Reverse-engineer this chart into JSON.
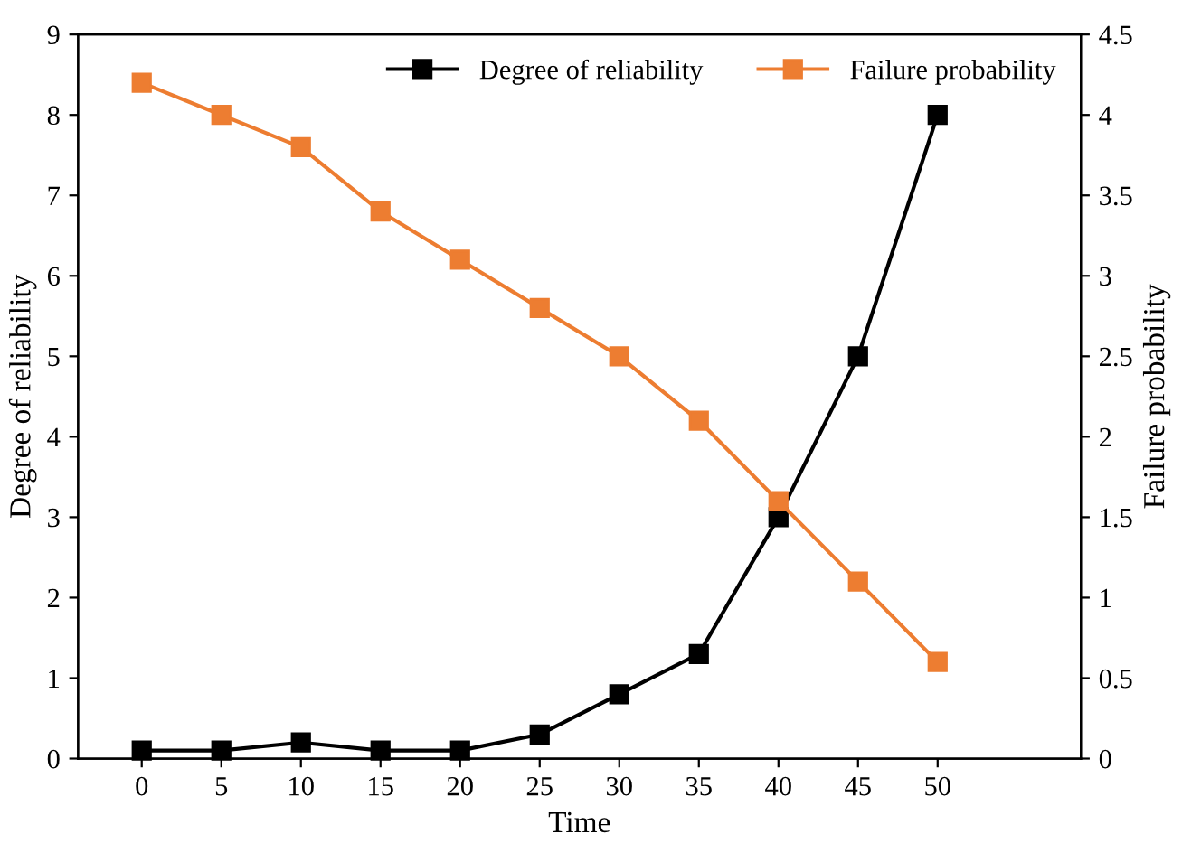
{
  "chart_data": {
    "type": "line",
    "xlabel": "Time",
    "ylabel": "Degree of reliability",
    "y2label": "Failure probability",
    "x": [
      0,
      5,
      10,
      15,
      20,
      25,
      30,
      35,
      40,
      45,
      50
    ],
    "series": [
      {
        "name": "Degree of reliability",
        "color": "#000000",
        "values": [
          0.1,
          0.1,
          0.2,
          0.1,
          0.1,
          0.3,
          0.8,
          1.3,
          3.0,
          5.0,
          8.0
        ]
      },
      {
        "name": "Failure probability",
        "color": "#ed7d31",
        "axis": "y2",
        "values": [
          4.2,
          4.0,
          3.8,
          3.4,
          3.1,
          2.8,
          2.5,
          2.1,
          1.6,
          1.1,
          0.6
        ]
      }
    ],
    "xlim": [
      -4,
      59
    ],
    "xticks": [
      0,
      5,
      10,
      15,
      20,
      25,
      30,
      35,
      40,
      45,
      50
    ],
    "ylim": [
      0,
      9
    ],
    "yticks": [
      0,
      1,
      2,
      3,
      4,
      5,
      6,
      7,
      8,
      9
    ],
    "y2lim": [
      0,
      4.5
    ],
    "y2ticks": [
      0,
      0.5,
      1,
      1.5,
      2,
      2.5,
      3,
      3.5,
      4,
      4.5
    ],
    "grid": false,
    "legend": "top right",
    "marker": "square",
    "line_style": "solid"
  }
}
